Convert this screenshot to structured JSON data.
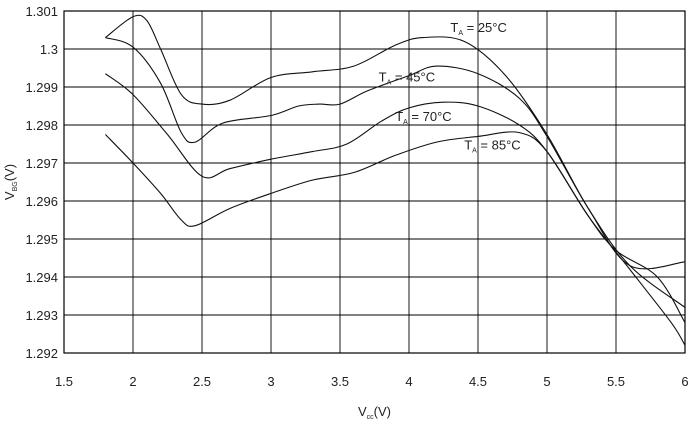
{
  "chart_data": {
    "type": "line",
    "title": "",
    "xlabel": {
      "main": "V",
      "sub": "cc",
      "unit": "(V)"
    },
    "ylabel": {
      "main": "V",
      "sub": "BG",
      "unit": "(V)"
    },
    "xlim": [
      1.5,
      6
    ],
    "ylim": [
      1.292,
      1.301
    ],
    "x_ticks": [
      "1.5",
      "2",
      "2.5",
      "3",
      "3.5",
      "4",
      "4.5",
      "5",
      "5.5",
      "6"
    ],
    "y_ticks": [
      "1.292",
      "1.293",
      "1.294",
      "1.295",
      "1.296",
      "1.297",
      "1.298",
      "1.299",
      "1.3",
      "1.301"
    ],
    "grid": true,
    "series": [
      {
        "name": "TA = 25°C",
        "label_main": "T",
        "label_sub": "A",
        "label_rest": " = 25°C",
        "points": [
          [
            1.8,
            1.3003
          ],
          [
            2.0,
            1.30085
          ],
          [
            2.1,
            1.30075
          ],
          [
            2.2,
            1.3
          ],
          [
            2.35,
            1.2988
          ],
          [
            2.5,
            1.29855
          ],
          [
            2.7,
            1.29865
          ],
          [
            3.0,
            1.29925
          ],
          [
            3.3,
            1.2994
          ],
          [
            3.6,
            1.29955
          ],
          [
            3.9,
            1.3001
          ],
          [
            4.1,
            1.3003
          ],
          [
            4.4,
            1.3002
          ],
          [
            4.7,
            1.2993
          ],
          [
            5.0,
            1.29775
          ],
          [
            5.3,
            1.2958
          ],
          [
            5.6,
            1.2943
          ],
          [
            6.0,
            1.2932
          ]
        ]
      },
      {
        "name": "TA = 45°C",
        "label_main": "T",
        "label_sub": "A",
        "label_rest": " = 45°C",
        "points": [
          [
            1.8,
            1.3003
          ],
          [
            2.0,
            1.30005
          ],
          [
            2.2,
            1.2991
          ],
          [
            2.35,
            1.2978
          ],
          [
            2.45,
            1.29755
          ],
          [
            2.65,
            1.29805
          ],
          [
            3.0,
            1.29825
          ],
          [
            3.2,
            1.2985
          ],
          [
            3.35,
            1.29855
          ],
          [
            3.5,
            1.29855
          ],
          [
            3.7,
            1.2989
          ],
          [
            4.0,
            1.2993
          ],
          [
            4.2,
            1.29955
          ],
          [
            4.5,
            1.29935
          ],
          [
            4.8,
            1.2987
          ],
          [
            5.0,
            1.2977
          ],
          [
            5.3,
            1.2958
          ],
          [
            5.6,
            1.2943
          ],
          [
            6.0,
            1.2944
          ]
        ]
      },
      {
        "name": "TA = 70°C",
        "label_main": "T",
        "label_sub": "A",
        "label_rest": " = 70°C",
        "points": [
          [
            1.8,
            1.29935
          ],
          [
            2.0,
            1.2988
          ],
          [
            2.25,
            1.29775
          ],
          [
            2.5,
            1.29665
          ],
          [
            2.7,
            1.29685
          ],
          [
            3.0,
            1.2971
          ],
          [
            3.3,
            1.2973
          ],
          [
            3.55,
            1.2975
          ],
          [
            3.8,
            1.2981
          ],
          [
            4.0,
            1.29845
          ],
          [
            4.25,
            1.2986
          ],
          [
            4.5,
            1.2985
          ],
          [
            4.8,
            1.298
          ],
          [
            5.0,
            1.2973
          ],
          [
            5.3,
            1.2956
          ],
          [
            5.5,
            1.2947
          ],
          [
            5.8,
            1.294
          ],
          [
            6.0,
            1.2928
          ]
        ]
      },
      {
        "name": "TA = 85°C",
        "label_main": "T",
        "label_sub": "A",
        "label_rest": " = 85°C",
        "points": [
          [
            1.8,
            1.29775
          ],
          [
            2.0,
            1.297
          ],
          [
            2.2,
            1.2962
          ],
          [
            2.35,
            1.2955
          ],
          [
            2.45,
            1.29535
          ],
          [
            2.7,
            1.2958
          ],
          [
            3.0,
            1.2962
          ],
          [
            3.3,
            1.29655
          ],
          [
            3.6,
            1.29675
          ],
          [
            3.9,
            1.2972
          ],
          [
            4.2,
            1.29755
          ],
          [
            4.5,
            1.2977
          ],
          [
            4.8,
            1.2978
          ],
          [
            5.0,
            1.2973
          ],
          [
            5.3,
            1.2956
          ],
          [
            5.6,
            1.2942
          ],
          [
            5.9,
            1.2928
          ],
          [
            6.0,
            1.2922
          ]
        ]
      }
    ],
    "annotations": [
      {
        "series": 0,
        "x": 4.3,
        "y": 1.30045
      },
      {
        "series": 1,
        "x": 3.78,
        "y": 1.29915
      },
      {
        "series": 2,
        "x": 3.9,
        "y": 1.2981
      },
      {
        "series": 3,
        "x": 4.4,
        "y": 1.29735
      }
    ]
  }
}
